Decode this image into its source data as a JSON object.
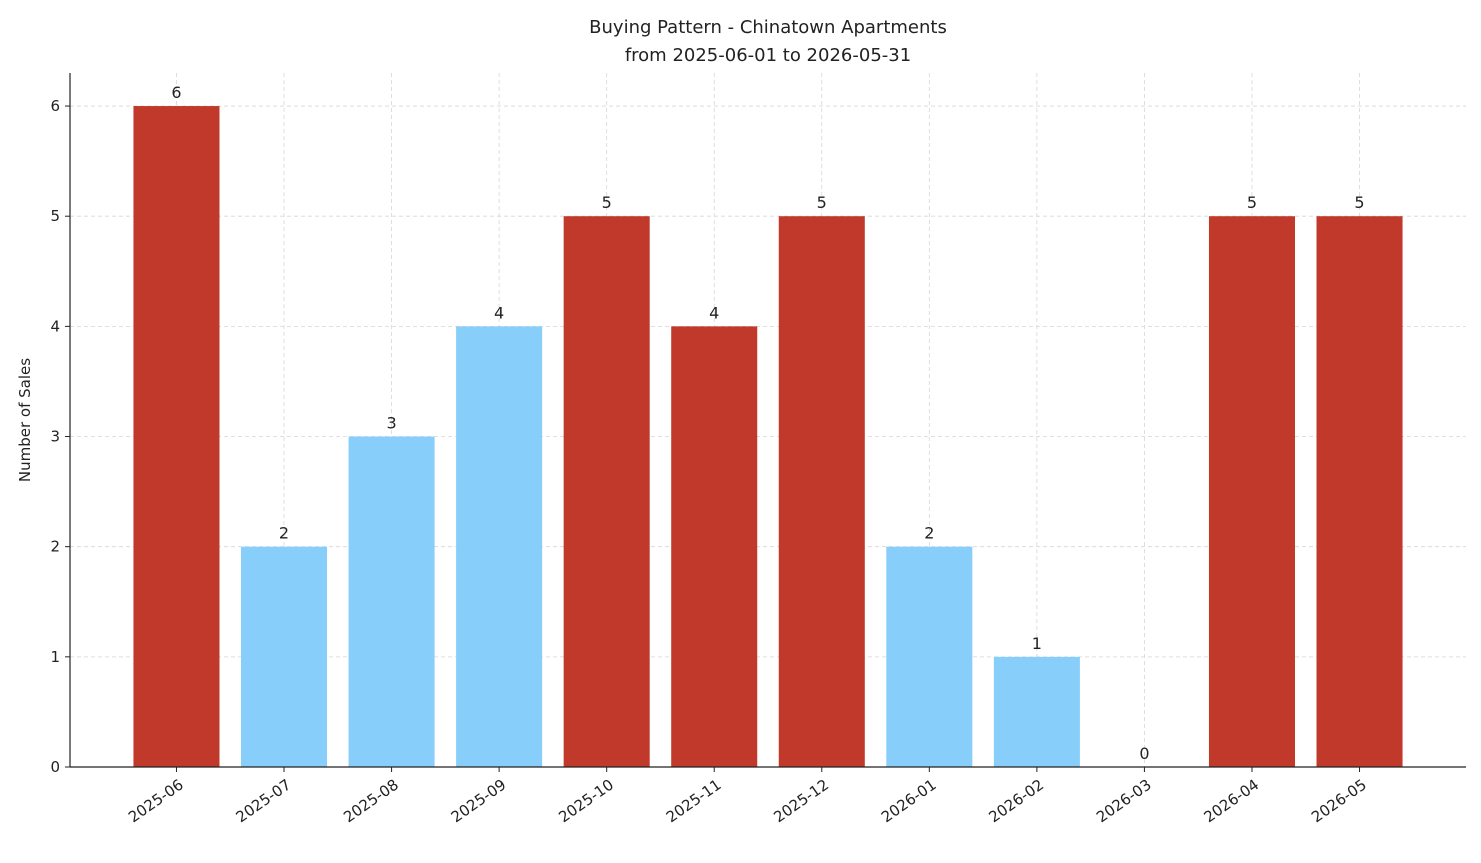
{
  "chart_data": {
    "type": "bar",
    "title": "Buying Pattern - Chinatown Apartments",
    "subtitle": "from 2025-06-01 to 2026-05-31",
    "y_label": "Number of Sales",
    "categories": [
      "2025-06",
      "2025-07",
      "2025-08",
      "2025-09",
      "2025-10",
      "2025-11",
      "2025-12",
      "2026-01",
      "2026-02",
      "2026-03",
      "2026-04",
      "2026-05"
    ],
    "values": [
      6,
      2,
      3,
      4,
      5,
      4,
      5,
      2,
      1,
      0,
      5,
      5
    ],
    "colors": [
      "#c0392b",
      "#87cefa",
      "#87cefa",
      "#87cefa",
      "#c0392b",
      "#c0392b",
      "#c0392b",
      "#87cefa",
      "#87cefa",
      "#87cefa",
      "#c0392b",
      "#c0392b"
    ],
    "ylim": [
      0,
      6.3
    ],
    "yticks": [
      0,
      1,
      2,
      3,
      4,
      5,
      6
    ],
    "grid": true
  }
}
